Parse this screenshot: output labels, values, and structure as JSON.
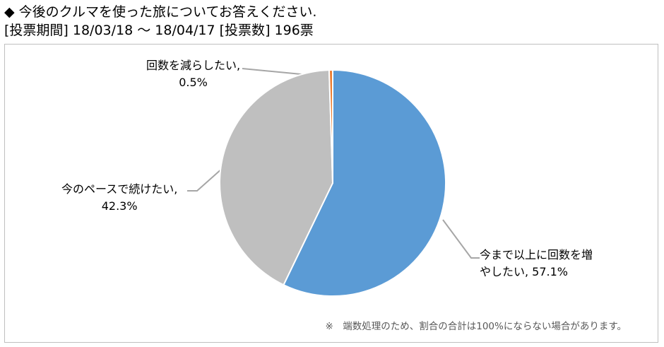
{
  "header": {
    "bullet": "◆",
    "question": "今後のクルマを使った旅についてお答えください.",
    "period_line": "[投票期間] 18/03/18 ～ 18/04/17 [投票数] 196票"
  },
  "chart_data": {
    "type": "pie",
    "title": "今後のクルマを使った旅についてお答えください.",
    "start_angle_deg": 0,
    "direction": "clockwise",
    "slices": [
      {
        "label": "今まで以上に回数を増やしたい",
        "value": 57.1,
        "display": "今まで以上に回数を増やしたい, 57.1%",
        "color": "#5b9bd5"
      },
      {
        "label": "今のペースで続けたい",
        "value": 42.3,
        "display": "今のペースで続けたい, 42.3%",
        "color": "#bfbfbf"
      },
      {
        "label": "回数を減らしたい",
        "value": 0.5,
        "display": "回数を減らしたい, 0.5%",
        "color": "#ed7d31"
      }
    ],
    "legend": "none"
  },
  "labels": {
    "increase_line1": "今まで以上に回数を増",
    "increase_line2": "やしたい, 57.1%",
    "keep_line1": "今のペースで続けたい,",
    "keep_line2": "42.3%",
    "reduce_line1": "回数を減らしたい,",
    "reduce_line2": "0.5%"
  },
  "footnote": "※　端数処理のため、割合の合計は100%にならない場合があります。"
}
